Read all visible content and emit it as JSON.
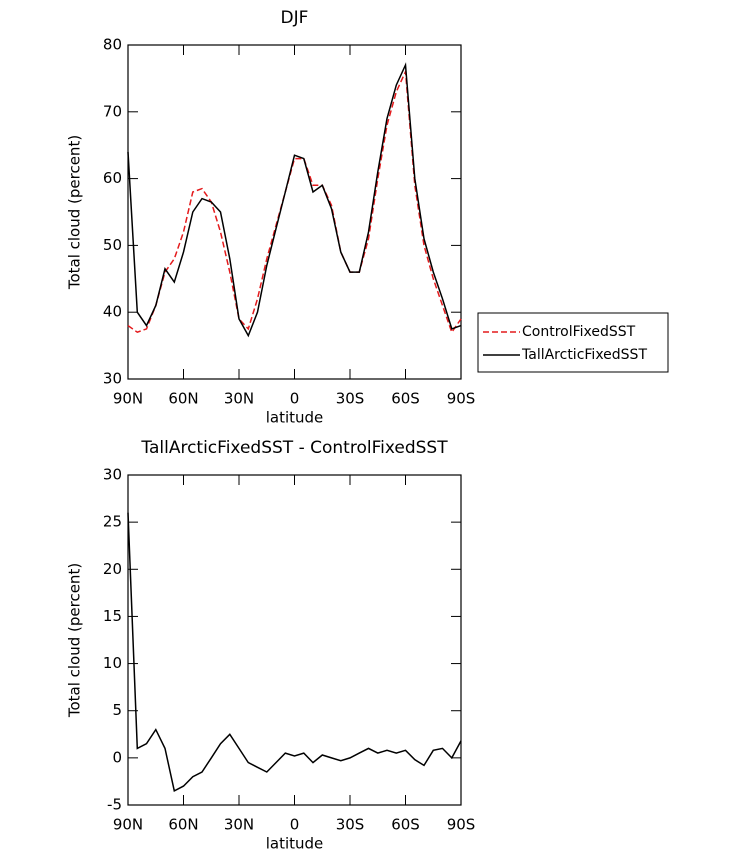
{
  "chart_data": [
    {
      "type": "line",
      "title": "DJF",
      "xlabel": "latitude",
      "ylabel": "Total cloud (percent)",
      "x": [
        90,
        85,
        80,
        75,
        70,
        65,
        60,
        55,
        50,
        45,
        40,
        35,
        30,
        25,
        20,
        15,
        10,
        5,
        0,
        -5,
        -10,
        -15,
        -20,
        -25,
        -30,
        -35,
        -40,
        -45,
        -50,
        -55,
        -60,
        -65,
        -70,
        -75,
        -80,
        -85,
        -90
      ],
      "series": [
        {
          "name": "ControlFixedSST",
          "color": "#e41a1c",
          "dash": true,
          "values": [
            38,
            37,
            37.5,
            41,
            46,
            48,
            52,
            58,
            58.5,
            56.5,
            52,
            46,
            39,
            37.5,
            42,
            48,
            53,
            58,
            63,
            63,
            59,
            59,
            56,
            49,
            46,
            46,
            51,
            60,
            68,
            73,
            76,
            59,
            50,
            45,
            41,
            37,
            39
          ]
        },
        {
          "name": "TallArcticFixedSST",
          "color": "#000000",
          "dash": false,
          "values": [
            64,
            40,
            38,
            41,
            46.5,
            44.5,
            49,
            55,
            57,
            56.5,
            55,
            48,
            39,
            36.5,
            40,
            47,
            52.5,
            58,
            63.5,
            63,
            58,
            59,
            55.5,
            49,
            46,
            46,
            52,
            61,
            69,
            74,
            77,
            60,
            51,
            46,
            42,
            37.5,
            38
          ]
        }
      ],
      "xlim": [
        90,
        -90
      ],
      "xticks": [
        {
          "value": 90,
          "label": "90N"
        },
        {
          "value": 60,
          "label": "60N"
        },
        {
          "value": 30,
          "label": "30N"
        },
        0,
        {
          "value": -30,
          "label": "30S"
        },
        {
          "value": -60,
          "label": "60S"
        },
        {
          "value": -90,
          "label": "90S"
        }
      ],
      "ylim": [
        30,
        80
      ],
      "yticks": [
        30,
        40,
        50,
        60,
        70,
        80
      ],
      "legend": "outside-right"
    },
    {
      "type": "line",
      "title": "TallArcticFixedSST - ControlFixedSST",
      "xlabel": "latitude",
      "ylabel": "Total cloud (percent)",
      "x": [
        90,
        85,
        80,
        75,
        70,
        65,
        60,
        55,
        50,
        45,
        40,
        35,
        30,
        25,
        20,
        15,
        10,
        5,
        0,
        -5,
        -10,
        -15,
        -20,
        -25,
        -30,
        -35,
        -40,
        -45,
        -50,
        -55,
        -60,
        -65,
        -70,
        -75,
        -80,
        -85,
        -90
      ],
      "values": [
        26,
        1,
        1.5,
        3,
        1,
        -3.5,
        -3,
        -2,
        -1.5,
        0,
        1.5,
        2.5,
        1,
        -0.5,
        -1,
        -1.5,
        -0.5,
        0.5,
        0.2,
        0.5,
        -0.5,
        0.3,
        0,
        -0.3,
        0,
        0.5,
        1,
        0.5,
        0.8,
        0.5,
        0.8,
        -0.2,
        -0.8,
        0.8,
        1,
        0,
        1.8
      ],
      "color": "#000000",
      "xlim": [
        90,
        -90
      ],
      "xticks": [
        {
          "value": 90,
          "label": "90N"
        },
        {
          "value": 60,
          "label": "60N"
        },
        {
          "value": 30,
          "label": "30N"
        },
        0,
        {
          "value": -30,
          "label": "30S"
        },
        {
          "value": -60,
          "label": "60S"
        },
        {
          "value": -90,
          "label": "90S"
        }
      ],
      "ylim": [
        -5,
        30
      ],
      "yticks": [
        -5,
        0,
        5,
        10,
        15,
        20,
        25,
        30
      ]
    }
  ]
}
